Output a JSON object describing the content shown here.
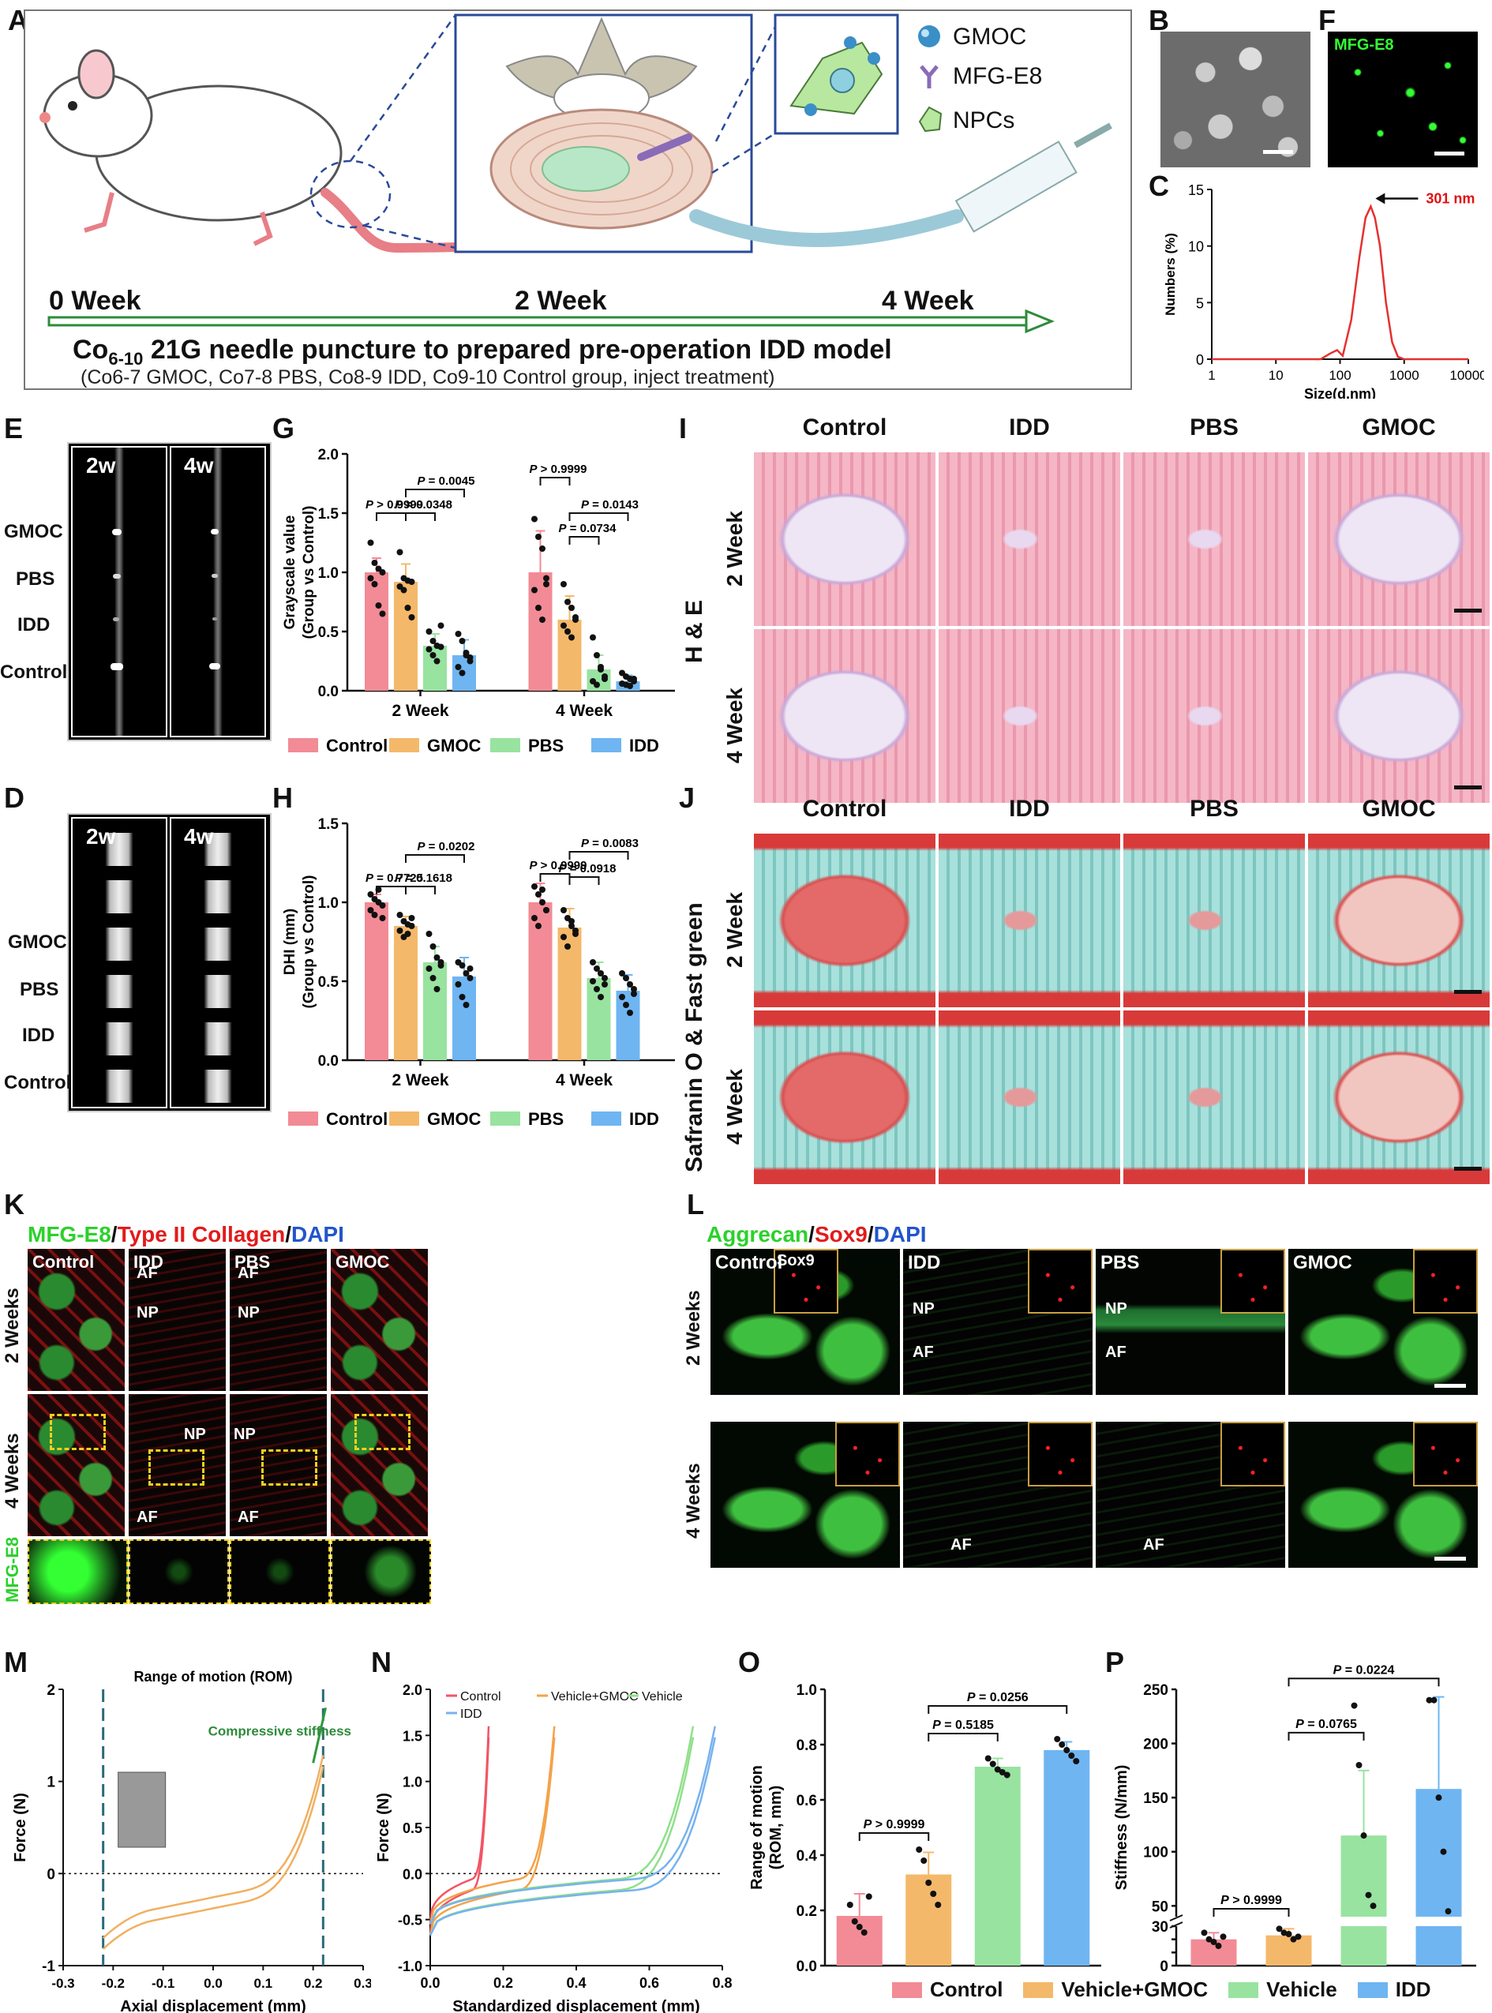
{
  "panel_labels": [
    "A",
    "B",
    "C",
    "D",
    "E",
    "F",
    "G",
    "H",
    "I",
    "J",
    "K",
    "L",
    "M",
    "N",
    "O",
    "P"
  ],
  "schematic": {
    "legend": [
      {
        "name": "GMOC",
        "icon": "microsphere-icon",
        "color": "#3a8fc7"
      },
      {
        "name": "MFG-E8",
        "icon": "y-antibody-icon",
        "color": "#8a6bb8"
      },
      {
        "name": "NPCs",
        "icon": "cell-icon",
        "color": "#8fd17a"
      }
    ],
    "timeline": [
      "0 Week",
      "2 Week",
      "4 Week"
    ],
    "caption_main_prefix": "Co",
    "caption_main_sub": "6-10",
    "caption_main_rest": " 21G needle puncture to prepared pre-operation IDD model",
    "caption_sub": "(Co6-7 GMOC, Co7-8 PBS, Co8-9 IDD, Co9-10 Control group, inject treatment)"
  },
  "panel_d": {
    "label": "MFG-E8"
  },
  "panel_c": {
    "chart_data": {
      "type": "line",
      "x_scale": "log",
      "xlim": [
        1,
        10000
      ],
      "ylim": [
        0,
        15
      ],
      "xticks": [
        "1",
        "10",
        "100",
        "1000",
        "10000"
      ],
      "yticks": [
        "0",
        "5",
        "10",
        "15"
      ],
      "xlabel": "Size(d.nm)",
      "ylabel": "Numbers (%)",
      "annotation": "301 nm",
      "series": [
        {
          "x": [
            1,
            10,
            50,
            70,
            90,
            110,
            150,
            200,
            250,
            301,
            350,
            420,
            520,
            650,
            800,
            1000,
            10000
          ],
          "y": [
            0,
            0,
            0,
            0.5,
            0.8,
            0.3,
            3.5,
            9,
            12.5,
            13.5,
            12.5,
            10,
            5,
            1.5,
            0.2,
            0,
            0
          ]
        }
      ]
    }
  },
  "xray": {
    "cols": [
      "2w",
      "4w"
    ],
    "rows": [
      "GMOC",
      "PBS",
      "IDD",
      "Control"
    ]
  },
  "panel_g": {
    "chart_data": {
      "type": "bar",
      "categories": [
        "2 Week",
        "4 Week"
      ],
      "ylabel": "Grayscale value\n(Group vs Control)",
      "ylabel_1": "Grayscale value",
      "ylabel_2": "(Group vs Control)",
      "ylim": [
        0,
        2.0
      ],
      "yticks": [
        "0.0",
        "0.5",
        "1.0",
        "1.5",
        "2.0"
      ],
      "series": [
        {
          "name": "Control",
          "values": [
            1.0,
            1.0
          ],
          "err": [
            0.12,
            0.35
          ]
        },
        {
          "name": "GMOC",
          "values": [
            0.92,
            0.6
          ],
          "err": [
            0.15,
            0.2
          ]
        },
        {
          "name": "PBS",
          "values": [
            0.38,
            0.18
          ],
          "err": [
            0.1,
            0.12
          ]
        },
        {
          "name": "IDD",
          "values": [
            0.3,
            0.08
          ],
          "err": [
            0.13,
            0.05
          ]
        }
      ],
      "points": [
        [
          [
            1.25,
            1.08,
            1.03,
            1.0,
            0.95,
            0.9,
            0.72,
            0.65
          ],
          [
            1.17,
            0.95,
            0.93,
            0.92,
            0.88,
            0.85,
            0.7,
            0.62
          ],
          [
            0.5,
            0.42,
            0.38,
            0.37,
            0.35,
            0.3,
            0.25,
            0.55
          ],
          [
            0.48,
            0.42,
            0.3,
            0.25,
            0.2,
            0.15,
            0.32,
            0.28
          ]
        ],
        [
          [
            1.45,
            1.3,
            1.2,
            0.9,
            0.85,
            0.7,
            0.6,
            0.95
          ],
          [
            0.9,
            0.75,
            0.7,
            0.6,
            0.55,
            0.5,
            0.45,
            0.62
          ],
          [
            0.45,
            0.3,
            0.18,
            0.1,
            0.08,
            0.05,
            0.2,
            0.12
          ],
          [
            0.15,
            0.12,
            0.1,
            0.08,
            0.06,
            0.05,
            0.04,
            0.1
          ]
        ]
      ],
      "annotations": [
        {
          "text": "P > 0.9999",
          "group": 0,
          "from": 0,
          "to": 1,
          "level": 1.5
        },
        {
          "text": "P = 0.0045",
          "group": 0,
          "from": 1,
          "to": 3,
          "level": 1.7
        },
        {
          "text": "P = 0.0348",
          "group": 0,
          "from": 1,
          "to": 2,
          "level": 1.5
        },
        {
          "text": "P > 0.9999",
          "group": 1,
          "from": 0,
          "to": 1,
          "level": 1.8
        },
        {
          "text": "P = 0.0143",
          "group": 1,
          "from": 1,
          "to": 3,
          "level": 1.5
        },
        {
          "text": "P = 0.0734",
          "group": 1,
          "from": 1,
          "to": 2,
          "level": 1.3
        }
      ]
    }
  },
  "panel_h": {
    "chart_data": {
      "type": "bar",
      "categories": [
        "2 Week",
        "4 Week"
      ],
      "ylabel": "DHI (mm)\n(Group vs Control)",
      "ylabel_1": "DHI (mm)",
      "ylabel_2": "(Group vs Control)",
      "ylim": [
        0,
        1.5
      ],
      "yticks": [
        "0.0",
        "0.5",
        "1.0",
        "1.5"
      ],
      "series": [
        {
          "name": "Control",
          "values": [
            1.0,
            1.0
          ],
          "err": [
            0.05,
            0.12
          ]
        },
        {
          "name": "GMOC",
          "values": [
            0.85,
            0.84
          ],
          "err": [
            0.06,
            0.12
          ]
        },
        {
          "name": "PBS",
          "values": [
            0.62,
            0.52
          ],
          "err": [
            0.1,
            0.1
          ]
        },
        {
          "name": "IDD",
          "values": [
            0.53,
            0.44
          ],
          "err": [
            0.12,
            0.1
          ]
        }
      ],
      "points": [
        [
          [
            1.05,
            1.02,
            1.0,
            0.98,
            0.95,
            0.92,
            1.08,
            0.9
          ],
          [
            0.92,
            0.88,
            0.86,
            0.85,
            0.82,
            0.78,
            0.8,
            0.9
          ],
          [
            0.8,
            0.72,
            0.65,
            0.6,
            0.58,
            0.52,
            0.45,
            0.62
          ],
          [
            0.62,
            0.6,
            0.55,
            0.52,
            0.48,
            0.4,
            0.35,
            0.58
          ]
        ],
        [
          [
            1.1,
            1.05,
            1.0,
            0.95,
            0.9,
            0.85,
            1.08,
            0.95
          ],
          [
            0.95,
            0.9,
            0.85,
            0.82,
            0.78,
            0.72,
            0.88,
            0.8
          ],
          [
            0.62,
            0.58,
            0.55,
            0.52,
            0.5,
            0.45,
            0.4,
            0.48
          ],
          [
            0.55,
            0.52,
            0.48,
            0.45,
            0.4,
            0.35,
            0.3,
            0.42
          ]
        ]
      ],
      "annotations": [
        {
          "text": "P = 0.7725",
          "group": 0,
          "from": 0,
          "to": 1,
          "level": 1.1
        },
        {
          "text": "P = 0.0202",
          "group": 0,
          "from": 1,
          "to": 3,
          "level": 1.3
        },
        {
          "text": "P = 0.1618",
          "group": 0,
          "from": 1,
          "to": 2,
          "level": 1.1
        },
        {
          "text": "P > 0.9999",
          "group": 1,
          "from": 0,
          "to": 1,
          "level": 1.18
        },
        {
          "text": "P = 0.0083",
          "group": 1,
          "from": 1,
          "to": 3,
          "level": 1.32
        },
        {
          "text": "P = 0.0918",
          "group": 1,
          "from": 1,
          "to": 2,
          "level": 1.16
        }
      ]
    }
  },
  "legend_groups": [
    {
      "name": "Control",
      "color": "#f28b95"
    },
    {
      "name": "GMOC",
      "color": "#f4b86a"
    },
    {
      "name": "PBS",
      "color": "#98e3a0"
    },
    {
      "name": "IDD",
      "color": "#6fb5f2"
    }
  ],
  "histology_cols": [
    "Control",
    "IDD",
    "PBS",
    "GMOC"
  ],
  "histology_rows": [
    "2 Week",
    "4 Week"
  ],
  "he_label": "H & E",
  "safranin_label": "Safranin O & Fast green",
  "panel_k": {
    "title_parts": [
      {
        "text": "MFG-E8",
        "color": "#2bd12b"
      },
      {
        "text": "/",
        "color": "#111"
      },
      {
        "text": "Type II Collagen",
        "color": "#e21b1b"
      },
      {
        "text": "/",
        "color": "#111"
      },
      {
        "text": "DAPI",
        "color": "#2255cc"
      }
    ],
    "cols": [
      "Control",
      "IDD",
      "PBS",
      "GMOC"
    ],
    "rows": [
      "2 Weeks",
      "4 Weeks"
    ],
    "bottom_row": "MFG-E8",
    "region_labels": {
      "af": "AF",
      "np": "NP"
    }
  },
  "panel_l": {
    "title_parts": [
      {
        "text": "Aggrecan",
        "color": "#2bd12b"
      },
      {
        "text": "/",
        "color": "#111"
      },
      {
        "text": "Sox9",
        "color": "#e21b1b"
      },
      {
        "text": "/",
        "color": "#111"
      },
      {
        "text": "DAPI",
        "color": "#2255cc"
      }
    ],
    "cols": [
      "Control",
      "IDD",
      "PBS",
      "GMOC"
    ],
    "rows": [
      "2 Weeks",
      "4 Weeks"
    ],
    "inset_label": "Sox9",
    "region_labels": {
      "af": "AF",
      "np": "NP"
    }
  },
  "panel_m": {
    "chart_data": {
      "type": "line",
      "title": "Range of motion (ROM)",
      "annotation": "Compressive stiffness",
      "xlabel": "Axial displacement (mm)",
      "ylabel": "Force (N)",
      "xlim": [
        -0.3,
        0.3
      ],
      "ylim": [
        -1,
        2
      ],
      "xticks": [
        "-0.3",
        "-0.2",
        "-0.1",
        "0.0",
        "0.1",
        "0.2",
        "0.3"
      ],
      "yticks": [
        "-1",
        "0",
        "1",
        "2"
      ]
    }
  },
  "panel_n": {
    "chart_data": {
      "type": "line",
      "xlabel": "Standardized displacement (mm)",
      "ylabel": "Force (N)",
      "xlim": [
        0,
        0.8
      ],
      "ylim": [
        -1,
        2
      ],
      "xticks": [
        "0.0",
        "0.2",
        "0.4",
        "0.6",
        "0.8"
      ],
      "yticks": [
        "-1.0",
        "-0.5",
        "0.0",
        "0.5",
        "1.0",
        "1.5",
        "2.0"
      ],
      "series": [
        {
          "name": "Control",
          "color": "#f25565",
          "end": 0.16
        },
        {
          "name": "Vehicle+GMOC",
          "color": "#f4a24a",
          "end": 0.34
        },
        {
          "name": "Vehicle",
          "color": "#8fe08a",
          "end": 0.72
        },
        {
          "name": "IDD",
          "color": "#77b2ee",
          "end": 0.78
        }
      ]
    }
  },
  "panel_o": {
    "chart_data": {
      "type": "bar",
      "categories": [
        "Control",
        "Vehicle+GMOC",
        "Vehicle",
        "IDD"
      ],
      "values": [
        0.18,
        0.33,
        0.72,
        0.78
      ],
      "err": [
        0.08,
        0.08,
        0.03,
        0.03
      ],
      "ylabel": "Range of motion\n(ROM, mm)",
      "ylabel_1": "Range of motion",
      "ylabel_2": "(ROM, mm)",
      "ylim": [
        0,
        1.0
      ],
      "yticks": [
        "0.0",
        "0.2",
        "0.4",
        "0.6",
        "0.8",
        "1.0"
      ],
      "points": [
        [
          0.22,
          0.16,
          0.14,
          0.12,
          0.25
        ],
        [
          0.42,
          0.38,
          0.3,
          0.26,
          0.22
        ],
        [
          0.75,
          0.73,
          0.71,
          0.7,
          0.69
        ],
        [
          0.82,
          0.8,
          0.78,
          0.76,
          0.74
        ]
      ],
      "annotations": [
        {
          "text": "P > 0.9999",
          "from": 0,
          "to": 1,
          "level": 0.48
        },
        {
          "text": "P = 0.5185",
          "from": 1,
          "to": 2,
          "level": 0.84
        },
        {
          "text": "P = 0.0256",
          "from": 1,
          "to": 3,
          "level": 0.94
        }
      ]
    }
  },
  "panel_p": {
    "chart_data": {
      "type": "bar",
      "categories": [
        "Control",
        "Vehicle+GMOC",
        "Vehicle",
        "IDD"
      ],
      "values": [
        20,
        23,
        115,
        158
      ],
      "err": [
        5,
        5,
        60,
        85
      ],
      "ylabel": "Stiffness (N/mm)",
      "broken_axis": true,
      "yticks_low": [
        "0",
        "10",
        "20",
        "30"
      ],
      "yticks_high": [
        "50",
        "100",
        "150",
        "200",
        "250"
      ],
      "points": [
        [
          25,
          20,
          18,
          15,
          22
        ],
        [
          28,
          25,
          24,
          20,
          22
        ],
        [
          235,
          180,
          115,
          60,
          50
        ],
        [
          240,
          240,
          150,
          100,
          45
        ]
      ],
      "annotations": [
        {
          "text": "P > 0.9999",
          "from": 0,
          "to": 1,
          "level": "low"
        },
        {
          "text": "P = 0.0765",
          "from": 1,
          "to": 2,
          "level": 210
        },
        {
          "text": "P = 0.0224",
          "from": 1,
          "to": 3,
          "level": 260
        }
      ]
    }
  },
  "legend_mech": [
    {
      "name": "Control",
      "color": "#f28b95"
    },
    {
      "name": "Vehicle+GMOC",
      "color": "#f4b86a"
    },
    {
      "name": "Vehicle",
      "color": "#98e3a0"
    },
    {
      "name": "IDD",
      "color": "#6fb5f2"
    }
  ],
  "colors": {
    "control": "#f28b95",
    "gmoc": "#f4b86a",
    "pbs": "#98e3a0",
    "idd": "#6fb5f2",
    "annot_red": "#e01010",
    "timeline_green": "#2e8b3a"
  }
}
